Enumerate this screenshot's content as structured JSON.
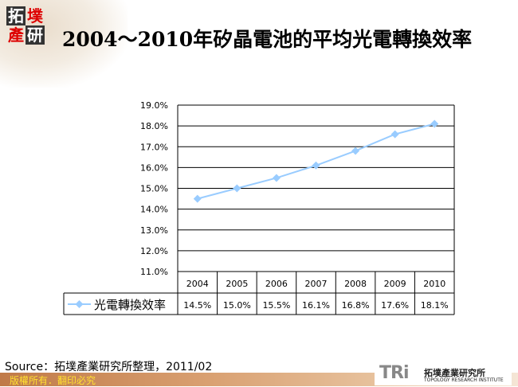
{
  "logo": {
    "chars": [
      "拓",
      "墣",
      "產",
      "研"
    ]
  },
  "title": "2004～2010年矽晶電池的平均光電轉換效率",
  "chart_data": {
    "type": "line",
    "title": "2004～2010年矽晶電池的平均光電轉換效率",
    "categories": [
      "2004",
      "2005",
      "2006",
      "2007",
      "2008",
      "2009",
      "2010"
    ],
    "series": [
      {
        "name": "光電轉換效率",
        "values": [
          14.5,
          15.0,
          15.5,
          16.1,
          16.8,
          17.6,
          18.1
        ],
        "labels": [
          "14.5%",
          "15.0%",
          "15.5%",
          "16.1%",
          "16.8%",
          "17.6%",
          "18.1%"
        ],
        "color": "#99ccff",
        "marker": "diamond"
      }
    ],
    "ylim": [
      11,
      19
    ],
    "yticks": [
      "11.0%",
      "12.0%",
      "13.0%",
      "14.0%",
      "15.0%",
      "16.0%",
      "17.0%",
      "18.0%",
      "19.0%"
    ],
    "grid": true,
    "legend": "data-table",
    "data_table": true
  },
  "source": "Source：拓墣產業研究所整理，2011/02",
  "footer": {
    "copyright": "版權所有．翻印必究",
    "brand": "TRi",
    "brand_cn": "拓墣產業研究所",
    "brand_en": "TOPOLOGY RESEARCH INSTITUTE"
  }
}
